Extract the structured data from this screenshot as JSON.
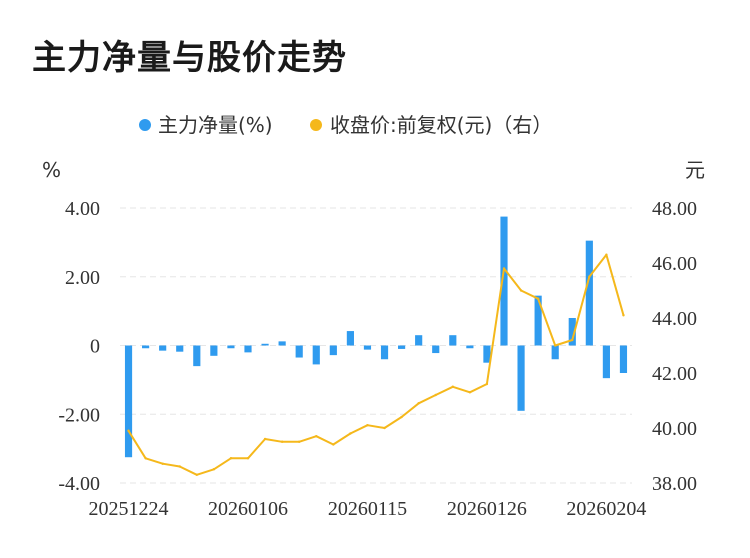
{
  "title": "主力净量与股价走势",
  "colors": {
    "bar": "#2f9bef",
    "line": "#f5b81b",
    "grid": "#e6e6e6"
  },
  "legend": {
    "series1": "主力净量(%)",
    "series2": "收盘价:前复权(元)（右）"
  },
  "axis": {
    "left_unit": "%",
    "right_unit": "元"
  },
  "chart_data": {
    "type": "bar",
    "legend_position": "top",
    "grid": true,
    "x_tick_labels": [
      "20251224",
      "20260106",
      "20260115",
      "20260126",
      "20260204"
    ],
    "x_tick_indices": [
      0,
      7,
      14,
      21,
      28
    ],
    "left_axis": {
      "ticks": [
        "4.00",
        "2.00",
        "0",
        "-2.00",
        "-4.00"
      ],
      "range": [
        -4,
        4
      ]
    },
    "right_axis": {
      "ticks": [
        "48.00",
        "46.00",
        "44.00",
        "42.00",
        "40.00",
        "38.00"
      ],
      "range": [
        38,
        48
      ]
    },
    "series": [
      {
        "name": "主力净量(%)",
        "type": "bar",
        "axis": "left",
        "values": [
          -3.25,
          -0.08,
          -0.15,
          -0.18,
          -0.6,
          -0.3,
          -0.08,
          -0.2,
          0.05,
          0.12,
          -0.35,
          -0.55,
          -0.28,
          0.42,
          -0.12,
          -0.4,
          -0.1,
          0.3,
          -0.22,
          0.3,
          -0.08,
          -0.5,
          3.75,
          -1.9,
          1.45,
          -0.4,
          0.8,
          3.05,
          -0.95,
          -0.8
        ]
      },
      {
        "name": "收盘价:前复权(元)（右）",
        "type": "line",
        "axis": "right",
        "values": [
          39.9,
          38.9,
          38.7,
          38.6,
          38.3,
          38.5,
          38.9,
          38.9,
          39.6,
          39.5,
          39.5,
          39.7,
          39.4,
          39.8,
          40.1,
          40.0,
          40.4,
          40.9,
          41.2,
          41.5,
          41.3,
          41.6,
          45.8,
          45.0,
          44.7,
          43.0,
          43.2,
          45.5,
          46.3,
          44.1
        ]
      }
    ]
  }
}
